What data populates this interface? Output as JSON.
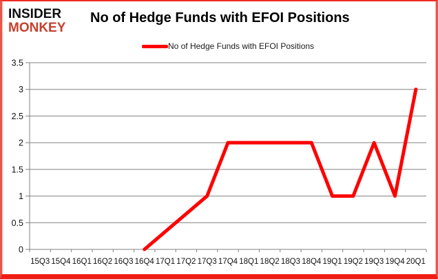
{
  "brand": {
    "line1": "INSIDER",
    "line2": "MONKEY",
    "line1_color": "#0d0d0d",
    "line2_color": "#c6402d"
  },
  "header": {
    "title": "No of Hedge Funds with EFOI Positions"
  },
  "legend": {
    "label": "No of Hedge Funds with EFOI Positions",
    "swatch_color": "#ff0000"
  },
  "colors": {
    "series_line": "#ff0000",
    "grid": "#808080",
    "axis": "#808080",
    "text": "#111111",
    "frame_border": "#ee2c24",
    "background": "#ffffff"
  },
  "chart_data": {
    "type": "line",
    "title": "No of Hedge Funds with EFOI Positions",
    "categories": [
      "15Q3",
      "15Q4",
      "16Q1",
      "16Q2",
      "16Q3",
      "16Q4",
      "17Q1",
      "17Q2",
      "17Q3",
      "17Q4",
      "18Q1",
      "18Q2",
      "18Q3",
      "18Q4",
      "19Q1",
      "19Q2",
      "19Q3",
      "19Q4",
      "20Q1"
    ],
    "series": [
      {
        "name": "No of Hedge Funds with EFOI Positions",
        "color": "#ff0000",
        "values": [
          null,
          null,
          null,
          null,
          null,
          0,
          null,
          null,
          1,
          2,
          2,
          2,
          2,
          2,
          1,
          1,
          2,
          1,
          3
        ],
        "note": "no data plotted before 16Q4; gaps connected with straight segments"
      }
    ],
    "xlabel": "",
    "ylabel": "",
    "ylim": [
      0,
      3.5
    ],
    "yticks": [
      {
        "v": 0,
        "label": "0"
      },
      {
        "v": 0.5,
        "label": "0.5"
      },
      {
        "v": 1,
        "label": "1"
      },
      {
        "v": 1.5,
        "label": "1.5"
      },
      {
        "v": 2,
        "label": "2"
      },
      {
        "v": 2.5,
        "label": "2.5"
      },
      {
        "v": 3,
        "label": "3"
      },
      {
        "v": 3.5,
        "label": "3.5"
      }
    ],
    "grid": true,
    "legend_position": "top-center"
  }
}
